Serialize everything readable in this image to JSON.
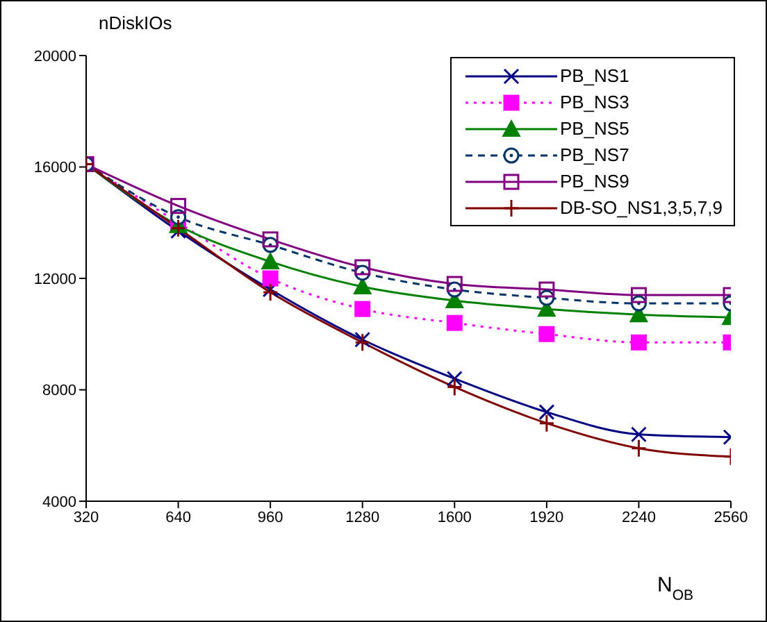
{
  "chart_data": {
    "type": "line",
    "title": "nDiskIOs",
    "xlabel": "N$_{OB}$",
    "x": [
      320,
      640,
      960,
      1280,
      1600,
      1920,
      2240,
      2560
    ],
    "xlim": [
      320,
      2560
    ],
    "xticks": [
      320,
      640,
      960,
      1280,
      1600,
      1920,
      2240,
      2560
    ],
    "ylim": [
      4000,
      20000
    ],
    "yticks": [
      4000,
      8000,
      12000,
      16000,
      20000
    ],
    "grid": false,
    "legend": "top right",
    "series": [
      {
        "name": "PB_NS1",
        "color": "#000080",
        "marker": "cross",
        "line_style": "solid",
        "values": [
          16100,
          13700,
          11600,
          9800,
          8400,
          7200,
          6400,
          6300
        ]
      },
      {
        "name": "PB_NS3",
        "color": "#ff00ff",
        "marker": "square",
        "line_style": "dotted",
        "values": [
          16100,
          14000,
          12000,
          10900,
          10400,
          10000,
          9700,
          9700
        ]
      },
      {
        "name": "PB_NS5",
        "color": "#008000",
        "marker": "triangle",
        "line_style": "solid",
        "values": [
          16100,
          13900,
          12600,
          11700,
          11200,
          10900,
          10700,
          10600
        ]
      },
      {
        "name": "PB_NS7",
        "color": "#003366",
        "marker": "circle",
        "line_style": "dashed",
        "values": [
          16100,
          14200,
          13200,
          12200,
          11600,
          11300,
          11100,
          11100
        ]
      },
      {
        "name": "PB_NS9",
        "color": "#800080",
        "marker": "square",
        "line_style": "solid",
        "values": [
          16100,
          14600,
          13400,
          12400,
          11800,
          11600,
          11400,
          11400
        ]
      },
      {
        "name": "DB-SO_NS1,3,5,7,9",
        "color": "#800000",
        "marker": "plus",
        "line_style": "solid",
        "values": [
          16100,
          13800,
          11500,
          9700,
          8100,
          6800,
          5900,
          5600
        ]
      }
    ]
  }
}
